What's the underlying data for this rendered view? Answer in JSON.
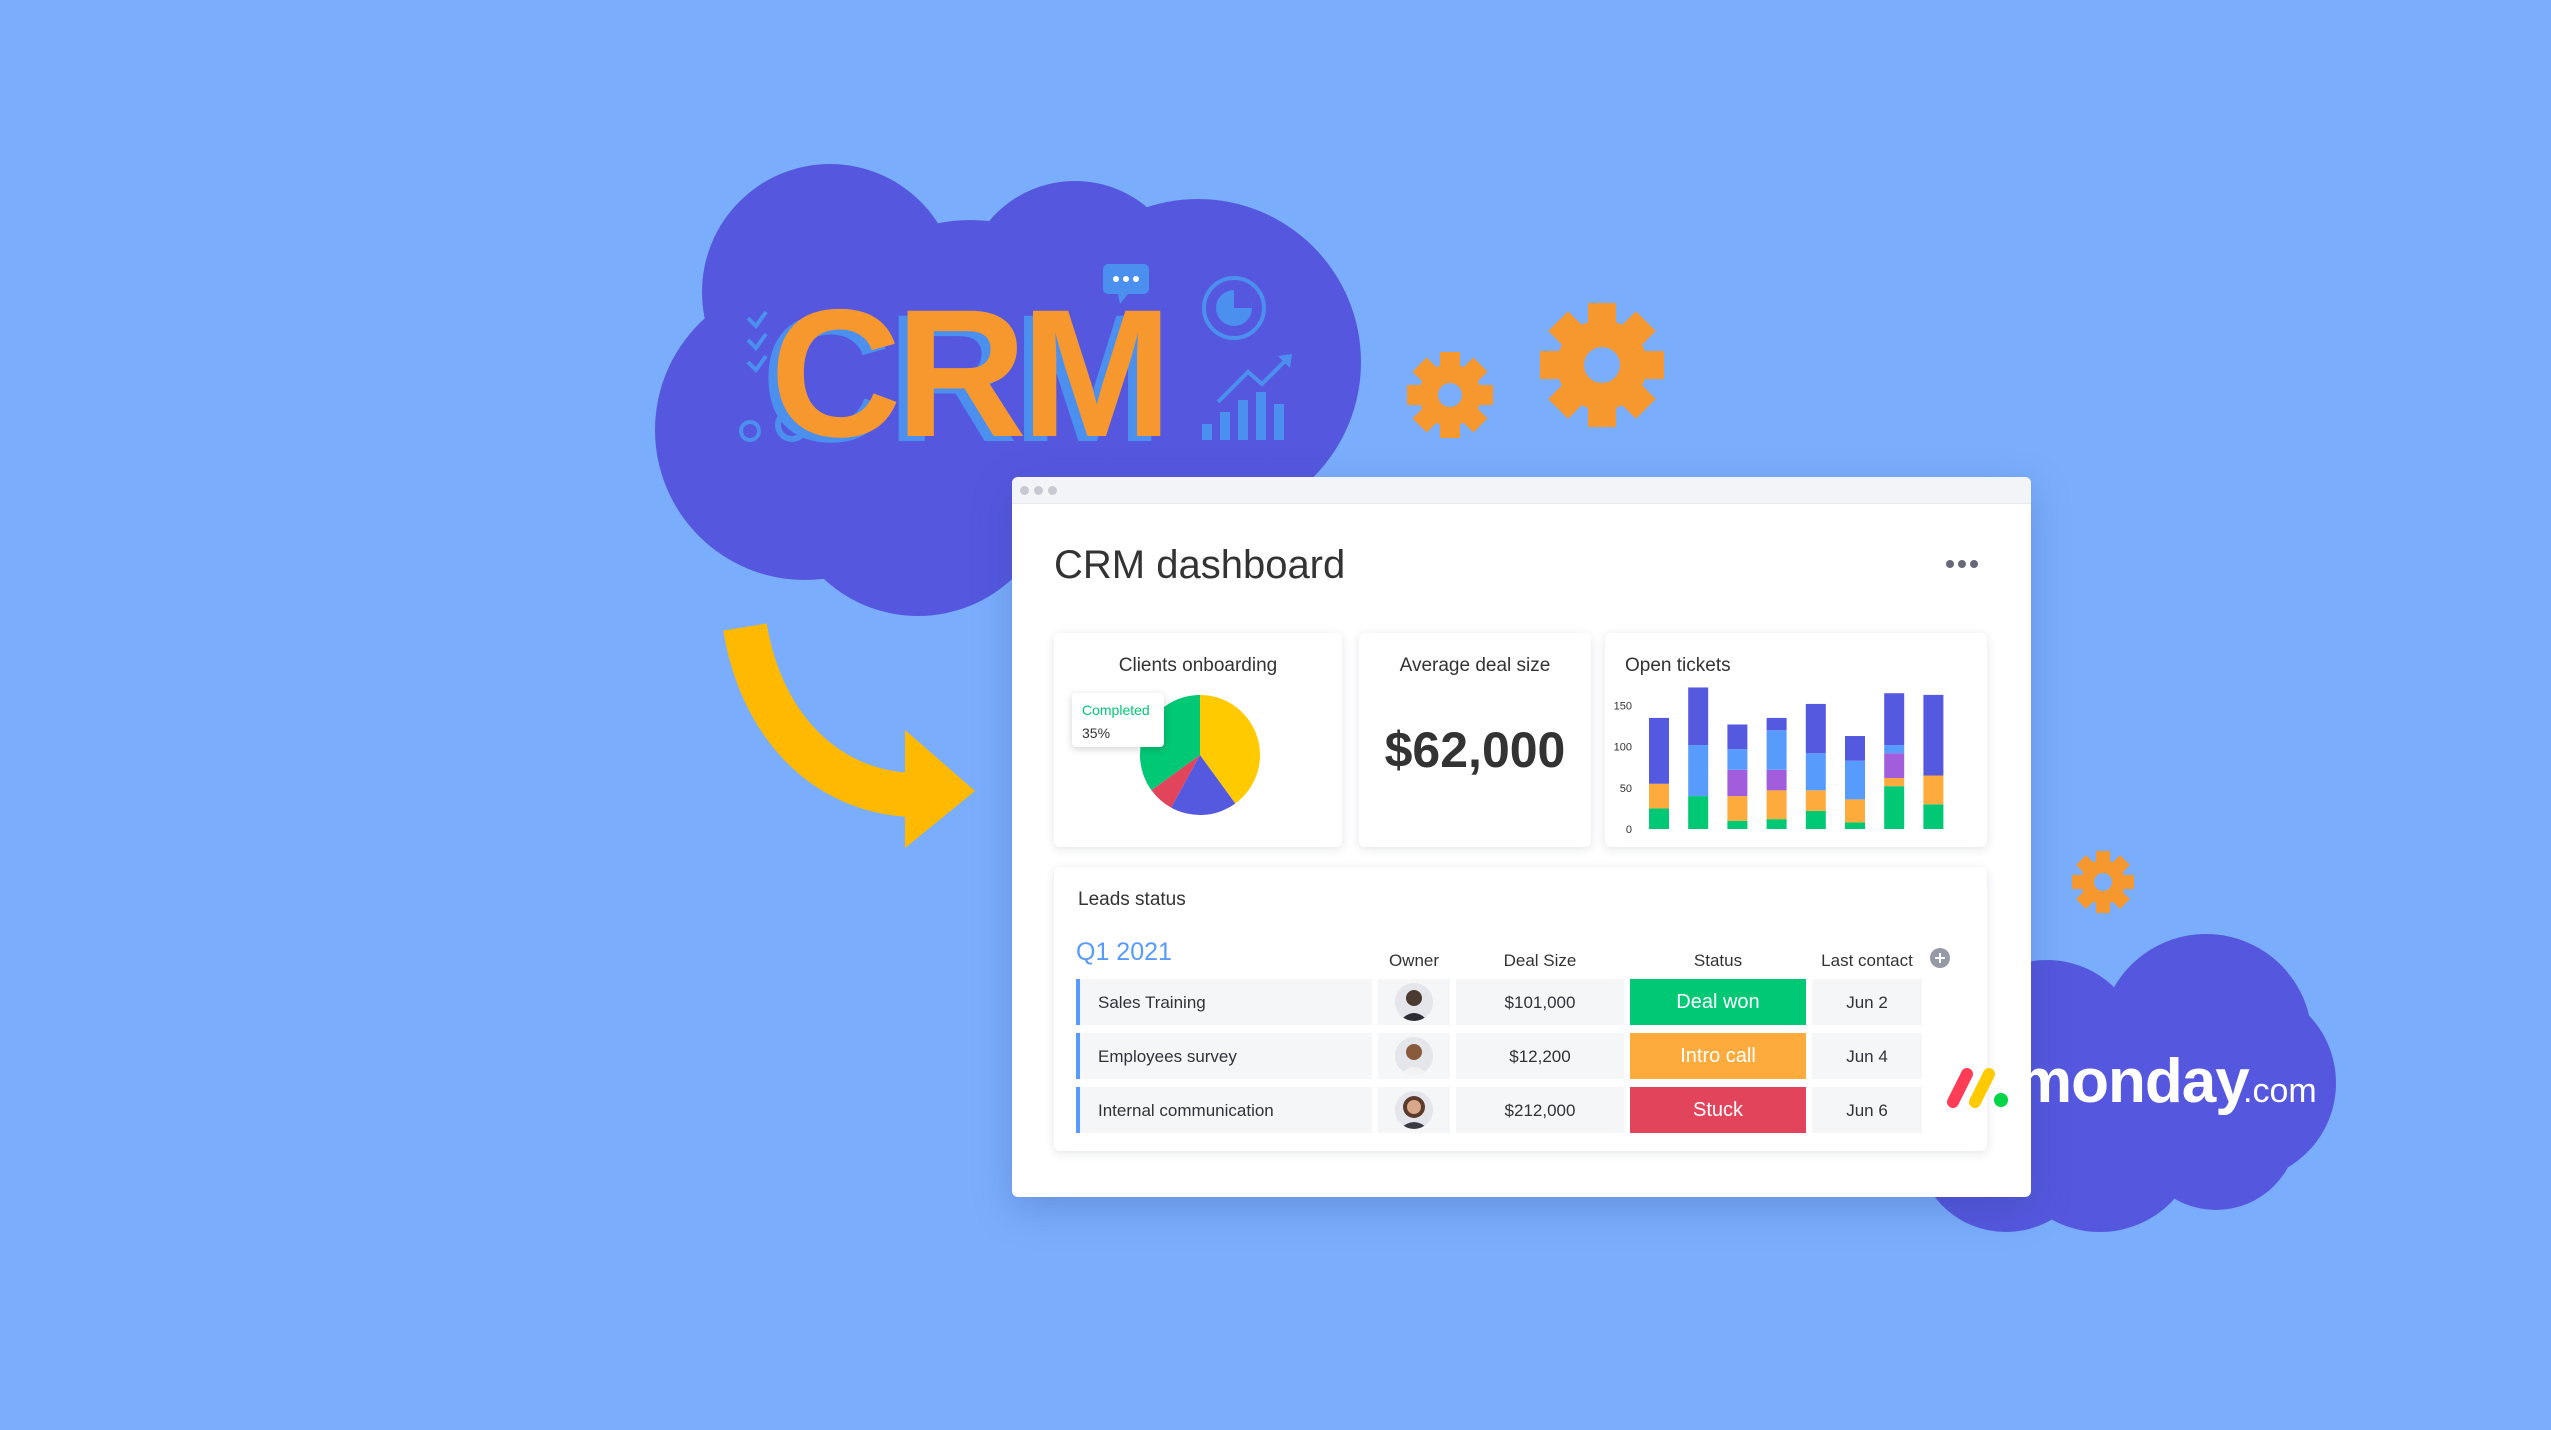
{
  "colors": {
    "background": "#7aaefc",
    "cloud": "#5558de",
    "orange": "#f7982e",
    "yellow_arrow": "#ffb900",
    "done_green": "#00c875",
    "working_orange": "#fdab3d",
    "stuck_red": "#e2445c",
    "blue": "#579bfc",
    "purple": "#a25ddc",
    "indigo": "#5559df"
  },
  "hero": {
    "title": "CRM",
    "icons": [
      "checklist-icon",
      "chat-bubble-icon",
      "donut-icon",
      "rising-chart-icon",
      "gear-icon"
    ]
  },
  "dashboard": {
    "title": "CRM dashboard",
    "more_icon": "more-horizontal-icon",
    "cards": {
      "clients": {
        "title": "Clients onboarding",
        "tag_label": "Completed",
        "tag_value": "35%"
      },
      "deal": {
        "title": "Average deal size",
        "value": "$62,000"
      },
      "tickets": {
        "title": "Open tickets"
      }
    },
    "leads": {
      "title": "Leads status",
      "group": "Q1 2021",
      "columns": [
        "Owner",
        "Deal Size",
        "Status",
        "Last contact"
      ],
      "add_column_icon": "plus-circle-icon",
      "rows": [
        {
          "name": "Sales Training",
          "deal": "$101,000",
          "status": "Deal won",
          "status_color": "#00c875",
          "contact": "Jun 2"
        },
        {
          "name": "Employees survey",
          "deal": "$12,200",
          "status": "Intro call",
          "status_color": "#fdab3d",
          "contact": "Jun 4"
        },
        {
          "name": "Internal communication",
          "deal": "$212,000",
          "status": "Stuck",
          "status_color": "#e2445c",
          "contact": "Jun 6"
        }
      ]
    }
  },
  "brand": {
    "word": "monday",
    "suffix": ".com"
  },
  "chart_data": [
    {
      "type": "pie",
      "labels": [
        "Completed",
        "",
        "",
        ""
      ],
      "values": [
        35,
        40,
        18,
        7
      ],
      "colors": [
        "#00c875",
        "#ffcb00",
        "#5559df",
        "#e2445c"
      ]
    },
    {
      "type": "bar",
      "stacked": true,
      "categories": [
        "1",
        "2",
        "3",
        "4",
        "5",
        "6",
        "7",
        "8"
      ],
      "yticks": [
        0,
        50,
        100,
        150
      ],
      "ylim": [
        0,
        175
      ],
      "series": [
        {
          "color": "#00c875",
          "values": [
            25,
            40,
            10,
            12,
            22,
            8,
            52,
            30
          ]
        },
        {
          "color": "#fdab3d",
          "values": [
            30,
            0,
            30,
            35,
            25,
            28,
            10,
            35
          ]
        },
        {
          "color": "#a25ddc",
          "values": [
            0,
            0,
            32,
            25,
            0,
            0,
            30,
            0
          ]
        },
        {
          "color": "#579bfc",
          "values": [
            0,
            62,
            25,
            48,
            45,
            47,
            10,
            0
          ]
        },
        {
          "color": "#5559df",
          "values": [
            80,
            70,
            30,
            15,
            60,
            30,
            63,
            98
          ]
        }
      ]
    }
  ]
}
